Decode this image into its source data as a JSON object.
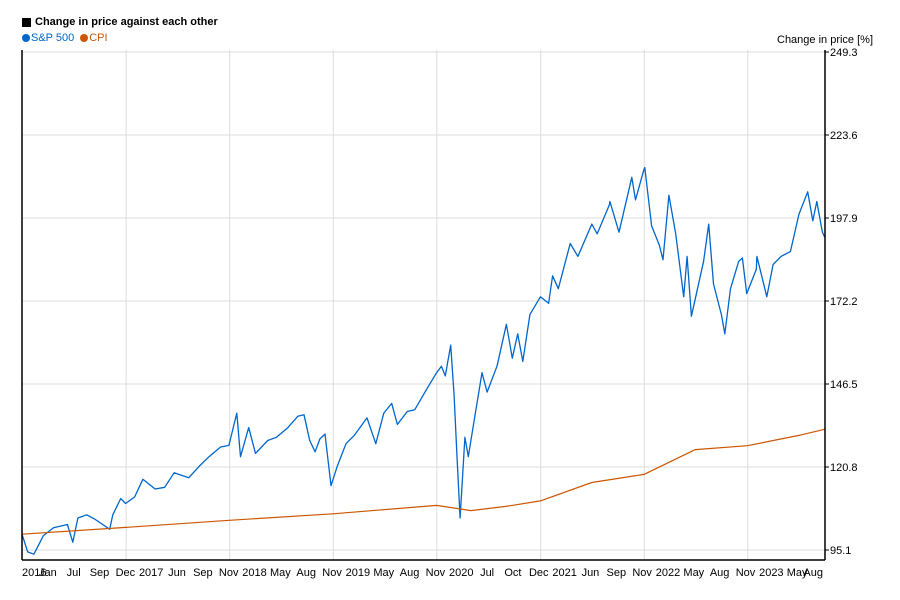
{
  "chart_data": {
    "type": "line",
    "title": "Change in price against each other",
    "ylabel": "Change in price [%]",
    "xlabel": "",
    "ylim": [
      95.1,
      249.3
    ],
    "yticks": [
      95.1,
      120.8,
      146.5,
      172.2,
      197.9,
      223.6,
      249.3
    ],
    "xtick_labels": [
      "2016",
      "Jan",
      "Jul",
      "Sep",
      "Dec",
      "2017",
      "Jun",
      "Sep",
      "Nov",
      "2018",
      "May",
      "Aug",
      "Nov",
      "2019",
      "May",
      "Aug",
      "Nov",
      "2020",
      "Jul",
      "Oct",
      "Dec",
      "2021",
      "Jun",
      "Sep",
      "Nov",
      "2022",
      "May",
      "Aug",
      "Nov",
      "2023",
      "May",
      "Aug"
    ],
    "vgrid_x": [
      "2017-01-01",
      "2018-01-01",
      "2019-01-01",
      "2020-01-01",
      "2021-01-01",
      "2022-01-01",
      "2023-01-01"
    ],
    "xrange": [
      "2015-12-31",
      "2023-09-30"
    ],
    "grid": true,
    "legend_placement": "top-left",
    "series": [
      {
        "name": "S&P 500",
        "color": "#0066cc",
        "points": [
          [
            "2015-12-31",
            100.0
          ],
          [
            "2016-01-20",
            94.5
          ],
          [
            "2016-02-11",
            93.8
          ],
          [
            "2016-03-15",
            99.5
          ],
          [
            "2016-04-20",
            102.0
          ],
          [
            "2016-06-08",
            103.0
          ],
          [
            "2016-06-27",
            97.5
          ],
          [
            "2016-07-15",
            105.0
          ],
          [
            "2016-08-15",
            106.0
          ],
          [
            "2016-09-15",
            104.5
          ],
          [
            "2016-11-04",
            101.5
          ],
          [
            "2016-11-15",
            106.0
          ],
          [
            "2016-12-13",
            111.0
          ],
          [
            "2016-12-30",
            109.5
          ],
          [
            "2017-01-31",
            111.5
          ],
          [
            "2017-03-01",
            117.0
          ],
          [
            "2017-04-13",
            114.0
          ],
          [
            "2017-05-17",
            114.5
          ],
          [
            "2017-06-19",
            119.0
          ],
          [
            "2017-08-10",
            117.5
          ],
          [
            "2017-09-15",
            121.0
          ],
          [
            "2017-10-20",
            124.0
          ],
          [
            "2017-11-30",
            127.0
          ],
          [
            "2017-12-29",
            127.5
          ],
          [
            "2018-01-26",
            137.5
          ],
          [
            "2018-02-08",
            124.0
          ],
          [
            "2018-03-09",
            133.0
          ],
          [
            "2018-04-02",
            125.0
          ],
          [
            "2018-05-15",
            129.0
          ],
          [
            "2018-06-15",
            130.0
          ],
          [
            "2018-07-25",
            133.0
          ],
          [
            "2018-08-29",
            136.5
          ],
          [
            "2018-09-20",
            137.0
          ],
          [
            "2018-10-10",
            129.0
          ],
          [
            "2018-10-29",
            125.5
          ],
          [
            "2018-11-15",
            129.5
          ],
          [
            "2018-12-03",
            131.0
          ],
          [
            "2018-12-24",
            115.0
          ],
          [
            "2019-01-15",
            121.0
          ],
          [
            "2019-02-15",
            128.0
          ],
          [
            "2019-03-15",
            130.5
          ],
          [
            "2019-04-30",
            136.0
          ],
          [
            "2019-05-31",
            128.0
          ],
          [
            "2019-06-28",
            137.5
          ],
          [
            "2019-07-26",
            140.5
          ],
          [
            "2019-08-15",
            134.0
          ],
          [
            "2019-09-19",
            138.0
          ],
          [
            "2019-10-15",
            138.5
          ],
          [
            "2019-11-27",
            145.0
          ],
          [
            "2019-12-31",
            150.0
          ],
          [
            "2020-01-17",
            152.0
          ],
          [
            "2020-01-31",
            149.0
          ],
          [
            "2020-02-19",
            158.5
          ],
          [
            "2020-03-02",
            143.0
          ],
          [
            "2020-03-12",
            124.0
          ],
          [
            "2020-03-23",
            105.0
          ],
          [
            "2020-04-09",
            130.0
          ],
          [
            "2020-04-21",
            124.0
          ],
          [
            "2020-05-15",
            137.0
          ],
          [
            "2020-06-08",
            150.0
          ],
          [
            "2020-06-26",
            144.0
          ],
          [
            "2020-07-31",
            152.0
          ],
          [
            "2020-09-02",
            165.0
          ],
          [
            "2020-09-23",
            154.5
          ],
          [
            "2020-10-12",
            162.0
          ],
          [
            "2020-10-30",
            153.5
          ],
          [
            "2020-11-24",
            168.0
          ],
          [
            "2020-12-31",
            173.5
          ],
          [
            "2021-01-29",
            171.5
          ],
          [
            "2021-02-12",
            180.0
          ],
          [
            "2021-03-04",
            176.0
          ],
          [
            "2021-04-15",
            190.0
          ],
          [
            "2021-05-12",
            186.0
          ],
          [
            "2021-06-30",
            196.0
          ],
          [
            "2021-07-19",
            193.0
          ],
          [
            "2021-08-31",
            202.0
          ],
          [
            "2021-09-02",
            203.0
          ],
          [
            "2021-10-04",
            193.5
          ],
          [
            "2021-11-18",
            210.5
          ],
          [
            "2021-12-01",
            203.5
          ],
          [
            "2021-12-31",
            213.0
          ],
          [
            "2022-01-03",
            213.5
          ],
          [
            "2022-01-27",
            195.5
          ],
          [
            "2022-02-23",
            189.5
          ],
          [
            "2022-03-08",
            185.0
          ],
          [
            "2022-03-29",
            205.0
          ],
          [
            "2022-04-22",
            193.0
          ],
          [
            "2022-05-20",
            173.5
          ],
          [
            "2022-06-01",
            186.0
          ],
          [
            "2022-06-16",
            167.5
          ],
          [
            "2022-07-29",
            184.5
          ],
          [
            "2022-08-16",
            196.0
          ],
          [
            "2022-09-02",
            177.5
          ],
          [
            "2022-09-30",
            168.0
          ],
          [
            "2022-10-12",
            162.0
          ],
          [
            "2022-11-01",
            176.0
          ],
          [
            "2022-11-30",
            184.5
          ],
          [
            "2022-12-13",
            185.5
          ],
          [
            "2022-12-28",
            174.5
          ],
          [
            "2023-01-31",
            182.0
          ],
          [
            "2023-02-02",
            186.0
          ],
          [
            "2023-03-09",
            173.5
          ],
          [
            "2023-03-31",
            183.5
          ],
          [
            "2023-04-28",
            186.0
          ],
          [
            "2023-05-31",
            187.5
          ],
          [
            "2023-06-30",
            199.0
          ],
          [
            "2023-07-31",
            206.0
          ],
          [
            "2023-08-18",
            197.0
          ],
          [
            "2023-09-01",
            203.0
          ],
          [
            "2023-09-21",
            193.5
          ],
          [
            "2023-09-29",
            192.0
          ]
        ]
      },
      {
        "name": "CPI",
        "color": "#cc5500",
        "points": [
          [
            "2015-12-31",
            100.0
          ],
          [
            "2016-12-31",
            102.1
          ],
          [
            "2017-12-31",
            104.3
          ],
          [
            "2018-12-31",
            106.3
          ],
          [
            "2019-12-31",
            108.9
          ],
          [
            "2020-04-30",
            107.3
          ],
          [
            "2020-08-31",
            108.6
          ],
          [
            "2020-12-31",
            110.3
          ],
          [
            "2021-06-30",
            116.0
          ],
          [
            "2021-12-31",
            118.5
          ],
          [
            "2022-06-30",
            126.2
          ],
          [
            "2022-12-31",
            127.4
          ],
          [
            "2023-06-30",
            130.6
          ],
          [
            "2023-09-30",
            132.5
          ]
        ]
      }
    ]
  }
}
